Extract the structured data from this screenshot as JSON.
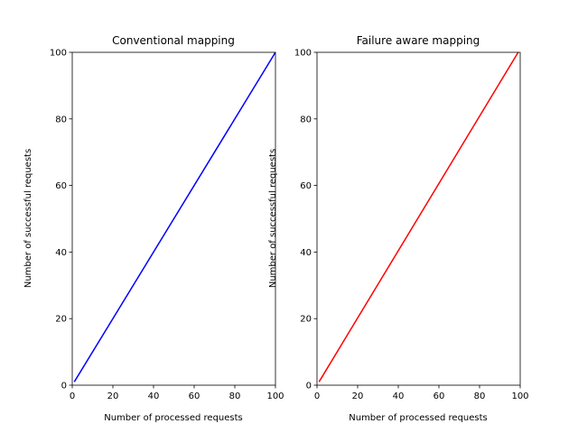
{
  "chart_data": [
    {
      "type": "line",
      "title": "Conventional mapping",
      "xlabel": "Number of processed requests",
      "ylabel": "Number of successful requests",
      "xlim": [
        0,
        100
      ],
      "ylim": [
        0,
        100
      ],
      "xticks": [
        0,
        20,
        40,
        60,
        80,
        100
      ],
      "yticks": [
        0,
        20,
        40,
        60,
        80,
        100
      ],
      "grid": false,
      "series": [
        {
          "color": "#0000ff",
          "x": [
            1,
            100
          ],
          "y": [
            1,
            100
          ]
        }
      ]
    },
    {
      "type": "line",
      "title": "Failure aware mapping",
      "xlabel": "Number of processed requests",
      "ylabel": "Number of successful requests",
      "xlim": [
        0,
        100
      ],
      "ylim": [
        0,
        100
      ],
      "xticks": [
        0,
        20,
        40,
        60,
        80,
        100
      ],
      "yticks": [
        0,
        20,
        40,
        60,
        80,
        100
      ],
      "grid": false,
      "series": [
        {
          "color": "#ff0000",
          "x": [
            1,
            99
          ],
          "y": [
            1,
            100
          ]
        }
      ]
    }
  ]
}
